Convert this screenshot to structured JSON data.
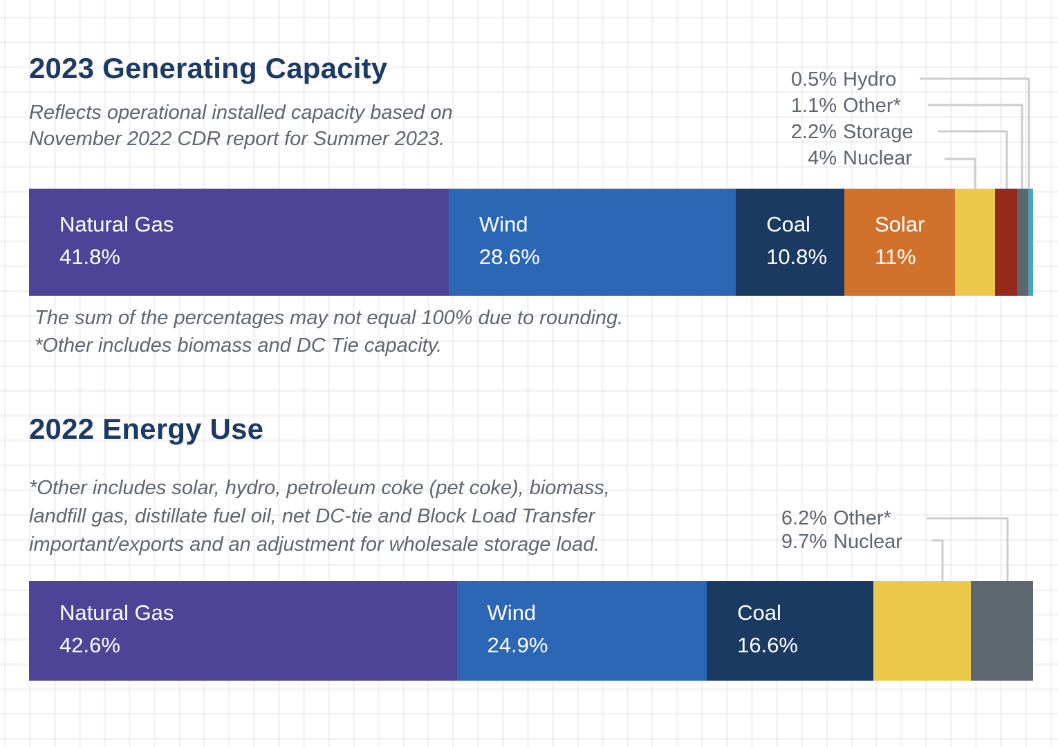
{
  "colors": {
    "title_text": "#1C3A66",
    "muted_text": "#5E6670",
    "bar_label_text": "#FFFFFF",
    "leader_line": "#C9CCD1",
    "natural_gas": "#4E4497",
    "wind": "#2B67B5",
    "coal": "#1B3A62",
    "solar": "#D0712C",
    "nuclear": "#ECC94A",
    "storage": "#952A1B",
    "other": "#5E6670",
    "hydro": "#48A4BC"
  },
  "capacity_chart": {
    "title": "2023 Generating Capacity",
    "subtitle": [
      "Reflects operational installed capacity based on",
      "November 2022 CDR report for Summer 2023."
    ],
    "callouts": [
      {
        "value": "0.5%",
        "label": "Hydro"
      },
      {
        "value": "1.1%",
        "label": "Other*"
      },
      {
        "value": "2.2%",
        "label": "Storage"
      },
      {
        "value": "4%",
        "label": "Nuclear"
      }
    ],
    "segments": [
      {
        "name": "Natural Gas",
        "value_label": "41.8%",
        "percent": 41.8,
        "color_key": "natural_gas",
        "labeled": true
      },
      {
        "name": "Wind",
        "value_label": "28.6%",
        "percent": 28.6,
        "color_key": "wind",
        "labeled": true
      },
      {
        "name": "Coal",
        "value_label": "10.8%",
        "percent": 10.8,
        "color_key": "coal",
        "labeled": true
      },
      {
        "name": "Solar",
        "value_label": "11%",
        "percent": 11.0,
        "color_key": "solar",
        "labeled": true
      },
      {
        "name": "Nuclear",
        "value_label": "4%",
        "percent": 4.0,
        "color_key": "nuclear",
        "labeled": false
      },
      {
        "name": "Storage",
        "value_label": "2.2%",
        "percent": 2.2,
        "color_key": "storage",
        "labeled": false
      },
      {
        "name": "Other*",
        "value_label": "1.1%",
        "percent": 1.1,
        "color_key": "other",
        "labeled": false
      },
      {
        "name": "Hydro",
        "value_label": "0.5%",
        "percent": 0.5,
        "color_key": "hydro",
        "labeled": false
      }
    ],
    "footnotes": [
      "The sum of the percentages may not equal 100% due to rounding.",
      "*Other includes biomass and DC Tie capacity."
    ]
  },
  "energy_chart": {
    "title": "2022 Energy Use",
    "note": [
      "*Other includes solar, hydro, petroleum coke (pet coke), biomass,",
      "landfill gas, distillate fuel oil, net DC-tie and Block Load Transfer",
      "important/exports and an adjustment for wholesale storage load."
    ],
    "callouts": [
      {
        "value": "6.2%",
        "label": "Other*"
      },
      {
        "value": "9.7%",
        "label": "Nuclear"
      }
    ],
    "segments": [
      {
        "name": "Natural Gas",
        "value_label": "42.6%",
        "percent": 42.6,
        "color_key": "natural_gas",
        "labeled": true
      },
      {
        "name": "Wind",
        "value_label": "24.9%",
        "percent": 24.9,
        "color_key": "wind",
        "labeled": true
      },
      {
        "name": "Coal",
        "value_label": "16.6%",
        "percent": 16.6,
        "color_key": "coal",
        "labeled": true
      },
      {
        "name": "Nuclear",
        "value_label": "9.7%",
        "percent": 9.7,
        "color_key": "nuclear",
        "labeled": false
      },
      {
        "name": "Other*",
        "value_label": "6.2%",
        "percent": 6.2,
        "color_key": "other",
        "labeled": false
      }
    ]
  },
  "chart_data": [
    {
      "type": "bar",
      "variant": "horizontal-stacked-100pct",
      "title": "2023 Generating Capacity",
      "subtitle": "Reflects operational installed capacity based on November 2022 CDR report for Summer 2023.",
      "categories": [
        "Natural Gas",
        "Wind",
        "Coal",
        "Solar",
        "Nuclear",
        "Storage",
        "Other*",
        "Hydro"
      ],
      "values": [
        41.8,
        28.6,
        10.8,
        11,
        4,
        2.2,
        1.1,
        0.5
      ],
      "unit": "%",
      "legend_position": "callouts-top-right",
      "annotations": [
        "0.5% Hydro",
        "1.1% Other*",
        "2.2% Storage",
        "4% Nuclear"
      ],
      "footnote": "The sum of the percentages may not equal 100% due to rounding. *Other includes biomass and DC Tie capacity."
    },
    {
      "type": "bar",
      "variant": "horizontal-stacked-100pct",
      "title": "2022 Energy Use",
      "subtitle": "*Other includes solar, hydro, petroleum coke (pet coke), biomass, landfill gas, distillate fuel oil, net DC-tie and Block Load Transfer important/exports and an adjustment for wholesale storage load.",
      "categories": [
        "Natural Gas",
        "Wind",
        "Coal",
        "Nuclear",
        "Other*"
      ],
      "values": [
        42.6,
        24.9,
        16.6,
        9.7,
        6.2
      ],
      "unit": "%",
      "legend_position": "callouts-top-right",
      "annotations": [
        "6.2% Other*",
        "9.7% Nuclear"
      ]
    }
  ]
}
